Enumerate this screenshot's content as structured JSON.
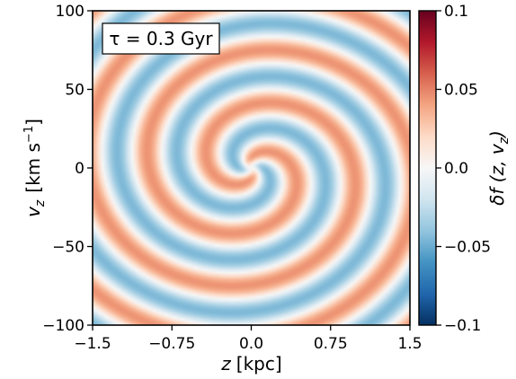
{
  "chart_data": {
    "type": "heatmap",
    "annotation": "τ = 0.3 Gyr",
    "xlabel": {
      "var": "z",
      "unit": "[kpc]"
    },
    "ylabel": {
      "var": "v",
      "sub": "z",
      "unit": "[km s",
      "sup": "−1",
      "close": "]"
    },
    "xlim": [
      -1.5,
      1.5
    ],
    "ylim": [
      -100,
      100
    ],
    "xticks": [
      -1.5,
      -0.75,
      0.0,
      0.75,
      1.5
    ],
    "xtick_labels": [
      "−1.5",
      "−0.75",
      "0.0",
      "0.75",
      "1.5"
    ],
    "yticks": [
      -100,
      -50,
      0,
      50,
      100
    ],
    "ytick_labels": [
      "−100",
      "−50",
      "0",
      "50",
      "100"
    ],
    "colorbar": {
      "label": "δf (z, v_z)",
      "label_parts": {
        "main": "δf (z, v",
        "sub": "z",
        "close": ")"
      },
      "range": [
        -0.1,
        0.1
      ],
      "ticks": [
        -0.1,
        -0.05,
        0.0,
        0.05,
        0.1
      ],
      "tick_labels": [
        "−0.1",
        "−0.05",
        "0.0",
        "0.05",
        "0.1"
      ],
      "colormap": "RdBu_r",
      "colors": [
        "#053061",
        "#2166ac",
        "#4393c3",
        "#92c5de",
        "#d1e5f0",
        "#f7f7f7",
        "#fddbc7",
        "#f4a582",
        "#d6604d",
        "#b2182b",
        "#67001f"
      ]
    },
    "pattern": "two-armed phase-space spiral, alternating red (positive) and blue (negative) δf, centred at z = 0, v_z = 0, amplitude ≈ 0.045"
  }
}
